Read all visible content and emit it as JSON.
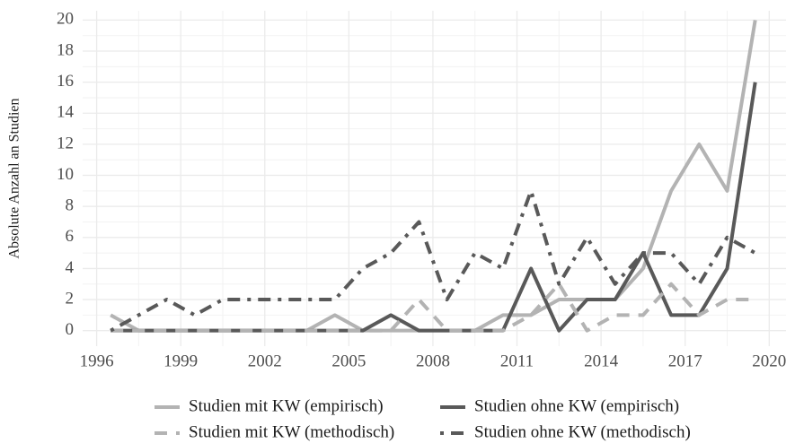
{
  "chart_data": {
    "type": "line",
    "y_label": "Absolute Anzahl an Studien",
    "x": [
      1996.5,
      1997.5,
      1998.5,
      1999.5,
      2000.5,
      2001.5,
      2002.5,
      2003.5,
      2004.5,
      2005.5,
      2006.5,
      2007.5,
      2008.5,
      2009.5,
      2010.5,
      2011.5,
      2012.5,
      2013.5,
      2014.5,
      2015.5,
      2016.5,
      2017.5,
      2018.5,
      2019.5
    ],
    "series": [
      {
        "name": "Studien mit KW (empirisch)",
        "color": "#b3b3b3",
        "linestyle": "solid",
        "values": [
          1,
          0,
          0,
          0,
          0,
          0,
          0,
          0,
          1,
          0,
          0,
          0,
          0,
          0,
          1,
          1,
          2,
          2,
          2,
          4,
          9,
          12,
          9,
          20
        ]
      },
      {
        "name": "Studien ohne KW (empirisch)",
        "color": "#595959",
        "linestyle": "solid",
        "values": [
          0,
          0,
          0,
          0,
          0,
          0,
          0,
          0,
          0,
          0,
          1,
          0,
          0,
          0,
          0,
          4,
          0,
          2,
          2,
          5,
          1,
          1,
          4,
          16
        ]
      },
      {
        "name": "Studien mit KW (methodisch)",
        "color": "#b3b3b3",
        "linestyle": "dashed",
        "values": [
          0,
          0,
          0,
          0,
          0,
          0,
          0,
          0,
          0,
          0,
          0,
          2,
          0,
          0,
          0,
          1,
          3,
          0,
          1,
          1,
          3,
          1,
          2,
          2
        ]
      },
      {
        "name": "Studien ohne KW (methodisch)",
        "color": "#595959",
        "linestyle": "dotdash",
        "values": [
          0,
          1,
          2,
          1,
          2,
          2,
          2,
          2,
          2,
          4,
          5,
          7,
          2,
          5,
          4,
          9,
          3,
          6,
          3,
          5,
          5,
          3,
          6,
          5
        ]
      }
    ],
    "xlim": [
      1995.5,
      2020.6
    ],
    "xticks": [
      1996,
      1999,
      2002,
      2005,
      2008,
      2011,
      2014,
      2017,
      2020
    ],
    "ylim": [
      -1,
      20.6
    ],
    "yticks": [
      0,
      2,
      4,
      6,
      8,
      10,
      12,
      14,
      16,
      18,
      20
    ],
    "grid": true,
    "legend": "bottom"
  }
}
